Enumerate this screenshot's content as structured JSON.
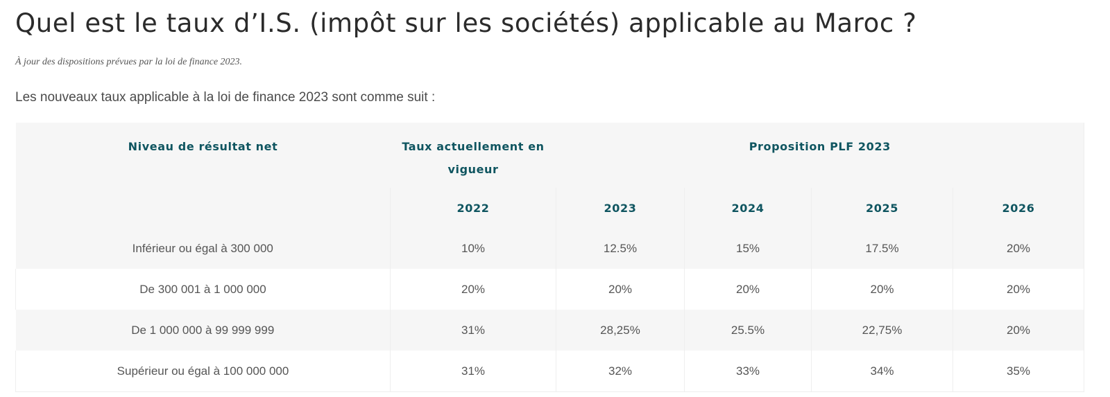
{
  "article": {
    "title": "Quel est le taux d’I.S. (impôt sur les sociétés) applicable au Maroc ?",
    "subtitle": "À jour des dispositions prévues par la loi de finance 2023.",
    "intro": "Les nouveaux taux applicable à la loi de finance 2023 sont comme suit :"
  },
  "table": {
    "header": {
      "level": "Niveau de résultat net",
      "current": "Taux actuellement en vigueur",
      "proposal": "Proposition PLF 2023"
    },
    "years": [
      "2022",
      "2023",
      "2024",
      "2025",
      "2026"
    ],
    "rows": [
      {
        "label": "Inférieur ou égal à 300 000",
        "values": [
          "10%",
          "12.5%",
          "15%",
          "17.5%",
          "20%"
        ]
      },
      {
        "label": "De 300 001 à 1 000 000",
        "values": [
          "20%",
          "20%",
          "20%",
          "20%",
          "20%"
        ]
      },
      {
        "label": "De 1 000 000 à 99 999 999",
        "values": [
          "31%",
          "28,25%",
          "25.5%",
          "22,75%",
          "20%"
        ]
      },
      {
        "label": "Supérieur ou égal à 100 000 000",
        "values": [
          "31%",
          "32%",
          "33%",
          "34%",
          "35%"
        ]
      }
    ]
  },
  "colors": {
    "header_text": "#0f5560",
    "stripe": "#f6f6f6"
  }
}
